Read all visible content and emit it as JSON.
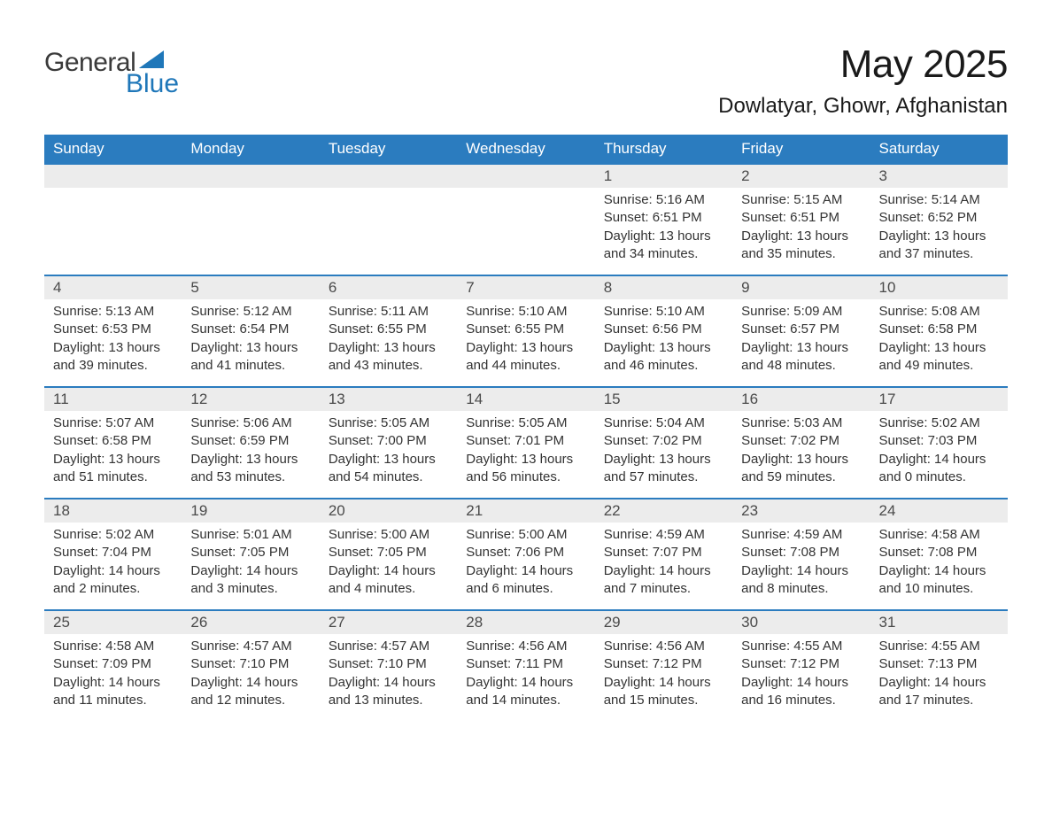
{
  "logo": {
    "text_general": "General",
    "text_blue": "Blue",
    "triangle_color": "#1f77b9"
  },
  "header": {
    "title": "May 2025",
    "location": "Dowlatyar, Ghowr, Afghanistan"
  },
  "styling": {
    "header_bar_color": "#2b7cbf",
    "header_text_color": "#ffffff",
    "daynum_bg": "#ececec",
    "week_divider_color": "#2b7cbf",
    "body_text_color": "#333333",
    "page_bg": "#ffffff",
    "title_color": "#1a1a1a",
    "font_family": "Arial",
    "dow_fontsize": 17,
    "daynum_fontsize": 17,
    "body_fontsize": 15,
    "title_fontsize": 44,
    "location_fontsize": 24
  },
  "days_of_week": [
    "Sunday",
    "Monday",
    "Tuesday",
    "Wednesday",
    "Thursday",
    "Friday",
    "Saturday"
  ],
  "weeks": [
    [
      {
        "n": "",
        "empty": true
      },
      {
        "n": "",
        "empty": true
      },
      {
        "n": "",
        "empty": true
      },
      {
        "n": "",
        "empty": true
      },
      {
        "n": "1",
        "sunrise": "5:16 AM",
        "sunset": "6:51 PM",
        "daylight": "13 hours and 34 minutes."
      },
      {
        "n": "2",
        "sunrise": "5:15 AM",
        "sunset": "6:51 PM",
        "daylight": "13 hours and 35 minutes."
      },
      {
        "n": "3",
        "sunrise": "5:14 AM",
        "sunset": "6:52 PM",
        "daylight": "13 hours and 37 minutes."
      }
    ],
    [
      {
        "n": "4",
        "sunrise": "5:13 AM",
        "sunset": "6:53 PM",
        "daylight": "13 hours and 39 minutes."
      },
      {
        "n": "5",
        "sunrise": "5:12 AM",
        "sunset": "6:54 PM",
        "daylight": "13 hours and 41 minutes."
      },
      {
        "n": "6",
        "sunrise": "5:11 AM",
        "sunset": "6:55 PM",
        "daylight": "13 hours and 43 minutes."
      },
      {
        "n": "7",
        "sunrise": "5:10 AM",
        "sunset": "6:55 PM",
        "daylight": "13 hours and 44 minutes."
      },
      {
        "n": "8",
        "sunrise": "5:10 AM",
        "sunset": "6:56 PM",
        "daylight": "13 hours and 46 minutes."
      },
      {
        "n": "9",
        "sunrise": "5:09 AM",
        "sunset": "6:57 PM",
        "daylight": "13 hours and 48 minutes."
      },
      {
        "n": "10",
        "sunrise": "5:08 AM",
        "sunset": "6:58 PM",
        "daylight": "13 hours and 49 minutes."
      }
    ],
    [
      {
        "n": "11",
        "sunrise": "5:07 AM",
        "sunset": "6:58 PM",
        "daylight": "13 hours and 51 minutes."
      },
      {
        "n": "12",
        "sunrise": "5:06 AM",
        "sunset": "6:59 PM",
        "daylight": "13 hours and 53 minutes."
      },
      {
        "n": "13",
        "sunrise": "5:05 AM",
        "sunset": "7:00 PM",
        "daylight": "13 hours and 54 minutes."
      },
      {
        "n": "14",
        "sunrise": "5:05 AM",
        "sunset": "7:01 PM",
        "daylight": "13 hours and 56 minutes."
      },
      {
        "n": "15",
        "sunrise": "5:04 AM",
        "sunset": "7:02 PM",
        "daylight": "13 hours and 57 minutes."
      },
      {
        "n": "16",
        "sunrise": "5:03 AM",
        "sunset": "7:02 PM",
        "daylight": "13 hours and 59 minutes."
      },
      {
        "n": "17",
        "sunrise": "5:02 AM",
        "sunset": "7:03 PM",
        "daylight": "14 hours and 0 minutes."
      }
    ],
    [
      {
        "n": "18",
        "sunrise": "5:02 AM",
        "sunset": "7:04 PM",
        "daylight": "14 hours and 2 minutes."
      },
      {
        "n": "19",
        "sunrise": "5:01 AM",
        "sunset": "7:05 PM",
        "daylight": "14 hours and 3 minutes."
      },
      {
        "n": "20",
        "sunrise": "5:00 AM",
        "sunset": "7:05 PM",
        "daylight": "14 hours and 4 minutes."
      },
      {
        "n": "21",
        "sunrise": "5:00 AM",
        "sunset": "7:06 PM",
        "daylight": "14 hours and 6 minutes."
      },
      {
        "n": "22",
        "sunrise": "4:59 AM",
        "sunset": "7:07 PM",
        "daylight": "14 hours and 7 minutes."
      },
      {
        "n": "23",
        "sunrise": "4:59 AM",
        "sunset": "7:08 PM",
        "daylight": "14 hours and 8 minutes."
      },
      {
        "n": "24",
        "sunrise": "4:58 AM",
        "sunset": "7:08 PM",
        "daylight": "14 hours and 10 minutes."
      }
    ],
    [
      {
        "n": "25",
        "sunrise": "4:58 AM",
        "sunset": "7:09 PM",
        "daylight": "14 hours and 11 minutes."
      },
      {
        "n": "26",
        "sunrise": "4:57 AM",
        "sunset": "7:10 PM",
        "daylight": "14 hours and 12 minutes."
      },
      {
        "n": "27",
        "sunrise": "4:57 AM",
        "sunset": "7:10 PM",
        "daylight": "14 hours and 13 minutes."
      },
      {
        "n": "28",
        "sunrise": "4:56 AM",
        "sunset": "7:11 PM",
        "daylight": "14 hours and 14 minutes."
      },
      {
        "n": "29",
        "sunrise": "4:56 AM",
        "sunset": "7:12 PM",
        "daylight": "14 hours and 15 minutes."
      },
      {
        "n": "30",
        "sunrise": "4:55 AM",
        "sunset": "7:12 PM",
        "daylight": "14 hours and 16 minutes."
      },
      {
        "n": "31",
        "sunrise": "4:55 AM",
        "sunset": "7:13 PM",
        "daylight": "14 hours and 17 minutes."
      }
    ]
  ],
  "labels": {
    "sunrise_prefix": "Sunrise: ",
    "sunset_prefix": "Sunset: ",
    "daylight_prefix": "Daylight: "
  }
}
